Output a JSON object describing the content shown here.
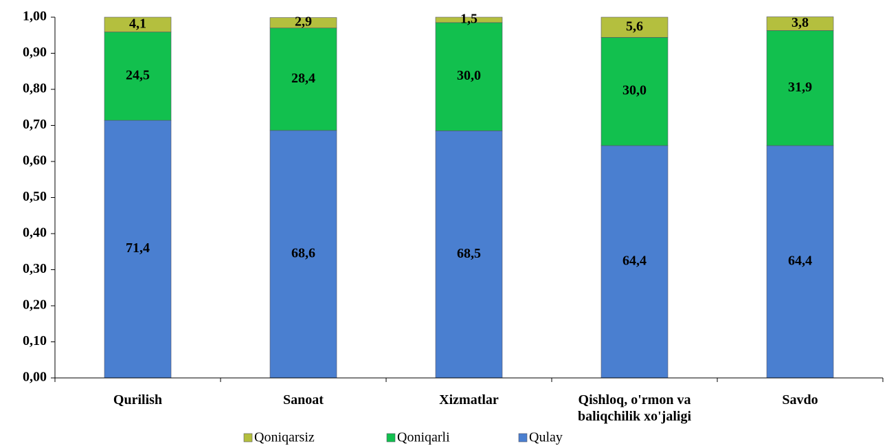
{
  "chart_data": {
    "type": "stacked_bar",
    "categories": [
      "Qurilish",
      "Sanoat",
      "Xizmatlar",
      "Qishloq, o'rmon va baliqchilik xo'jaligi",
      "Savdo"
    ],
    "series": [
      {
        "name": "Qulay",
        "color": "#4a7fd0",
        "values": [
          0.714,
          0.686,
          0.685,
          0.644,
          0.644
        ],
        "value_labels": [
          "71,4",
          "68,6",
          "68,5",
          "64,4",
          "64,4"
        ]
      },
      {
        "name": "Qoniqarli",
        "color": "#12c04e",
        "values": [
          0.245,
          0.284,
          0.3,
          0.3,
          0.319
        ],
        "value_labels": [
          "24,5",
          "28,4",
          "30,0",
          "30,0",
          "31,9"
        ]
      },
      {
        "name": "Qoniqarsiz",
        "color": "#b4bf3e",
        "values": [
          0.041,
          0.029,
          0.015,
          0.056,
          0.038
        ],
        "value_labels": [
          "4,1",
          "2,9",
          "1,5",
          "5,6",
          "3,8"
        ]
      }
    ],
    "ylim": [
      0,
      1
    ],
    "yticks": [
      {
        "value": 0,
        "label": "0,00"
      },
      {
        "value": 0.1,
        "label": "0,10"
      },
      {
        "value": 0.2,
        "label": "0,20"
      },
      {
        "value": 0.3,
        "label": "0,30"
      },
      {
        "value": 0.4,
        "label": "0,40"
      },
      {
        "value": 0.5,
        "label": "0,50"
      },
      {
        "value": 0.6,
        "label": "0,60"
      },
      {
        "value": 0.7,
        "label": "0,70"
      },
      {
        "value": 0.8,
        "label": "0,80"
      },
      {
        "value": 0.9,
        "label": "0,90"
      },
      {
        "value": 1,
        "label": "1,00"
      }
    ],
    "grid": false
  }
}
